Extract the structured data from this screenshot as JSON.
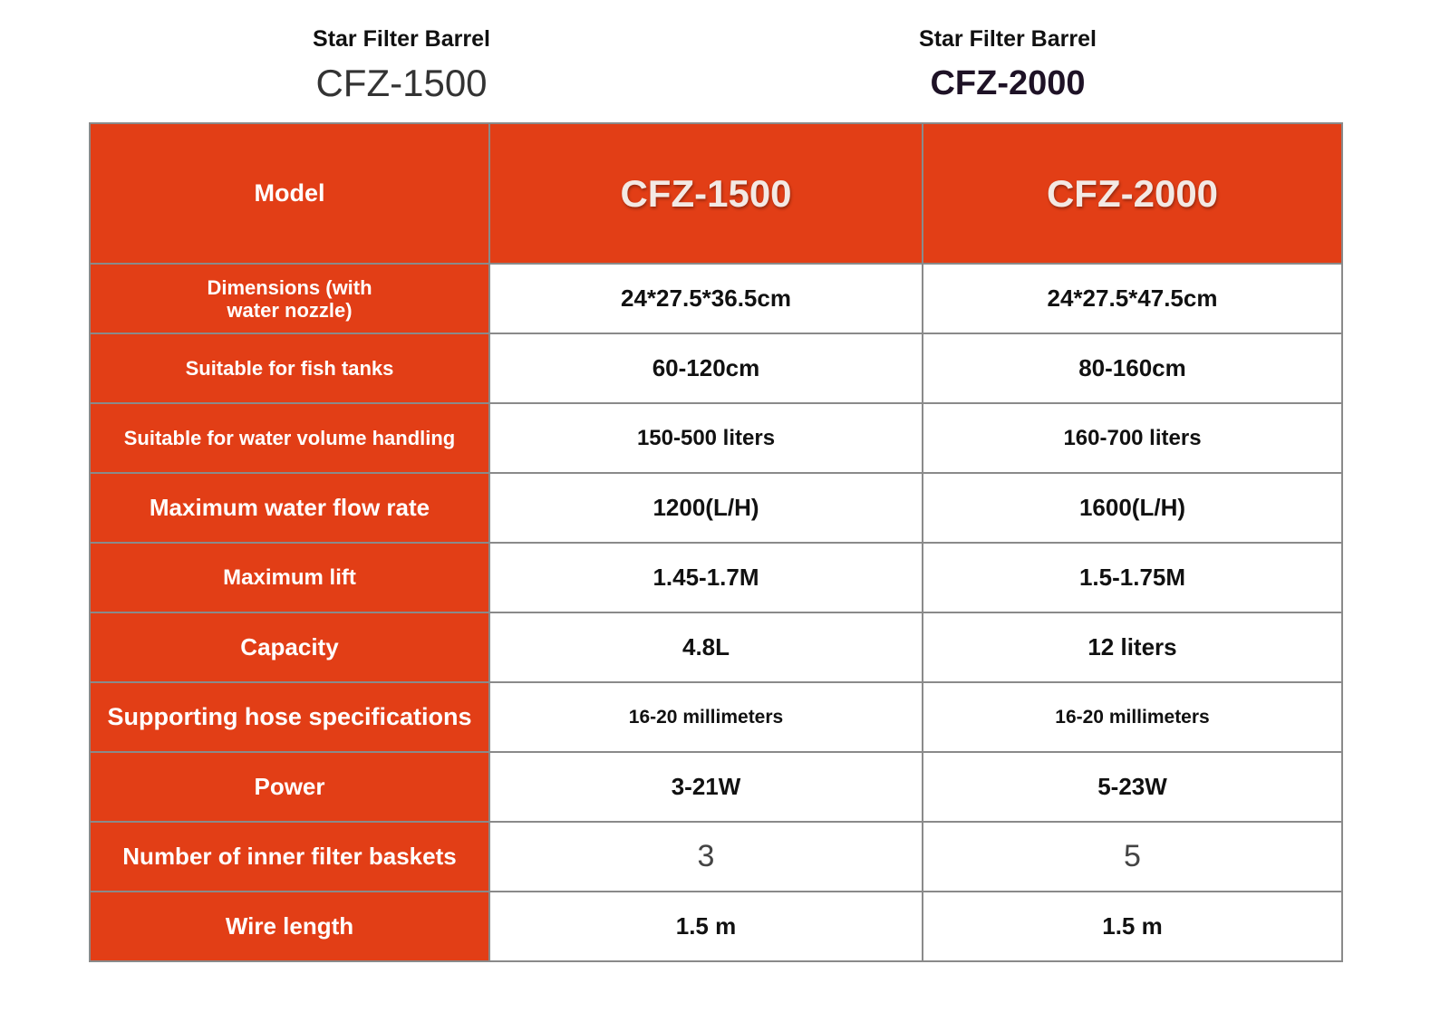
{
  "header": {
    "products": [
      {
        "subtitle": "Star Filter Barrel",
        "model": "CFZ-1500"
      },
      {
        "subtitle": "Star Filter Barrel",
        "model": "CFZ-2000"
      }
    ]
  },
  "table": {
    "columns": [
      "Model",
      "CFZ-1500",
      "CFZ-2000"
    ],
    "rows": [
      [
        "Dimensions (with water nozzle)",
        "24*27.5*36.5cm",
        "24*27.5*47.5cm"
      ],
      [
        "Suitable for fish tanks",
        "60-120cm",
        "80-160cm"
      ],
      [
        "Suitable for water volume handling",
        "150-500 liters",
        "160-700 liters"
      ],
      [
        "Maximum water flow rate",
        "1200(L/H)",
        "1600(L/H)"
      ],
      [
        "Maximum lift",
        "1.45-1.7M",
        "1.5-1.75M"
      ],
      [
        "Capacity",
        "4.8L",
        "12 liters"
      ],
      [
        "Supporting hose specifications",
        "16-20 millimeters",
        "16-20 millimeters"
      ],
      [
        "Power",
        "3-21W",
        "5-23W"
      ],
      [
        "Number of inner filter baskets",
        "3",
        "5"
      ],
      [
        "Wire length",
        "1.5 m",
        "1.5 m"
      ]
    ]
  }
}
